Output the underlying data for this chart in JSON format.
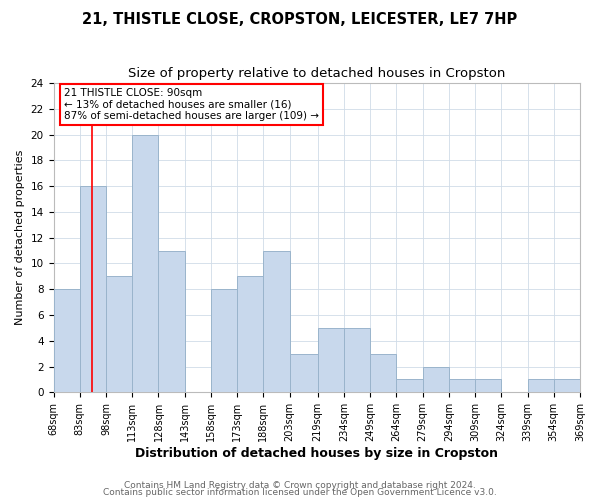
{
  "title": "21, THISTLE CLOSE, CROPSTON, LEICESTER, LE7 7HP",
  "subtitle": "Size of property relative to detached houses in Cropston",
  "xlabel": "Distribution of detached houses by size in Cropston",
  "ylabel": "Number of detached properties",
  "bar_edges": [
    68,
    83,
    98,
    113,
    128,
    143,
    158,
    173,
    188,
    203,
    219,
    234,
    249,
    264,
    279,
    294,
    309,
    324,
    339,
    354,
    369
  ],
  "bar_heights": [
    8,
    16,
    9,
    20,
    11,
    0,
    8,
    9,
    11,
    3,
    5,
    5,
    3,
    1,
    2,
    1,
    1,
    0,
    1,
    1
  ],
  "bar_color": "#c8d8ec",
  "bar_edge_color": "#9ab4cc",
  "ylim": [
    0,
    24
  ],
  "yticks": [
    0,
    2,
    4,
    6,
    8,
    10,
    12,
    14,
    16,
    18,
    20,
    22,
    24
  ],
  "xtick_labels": [
    "68sqm",
    "83sqm",
    "98sqm",
    "113sqm",
    "128sqm",
    "143sqm",
    "158sqm",
    "173sqm",
    "188sqm",
    "203sqm",
    "219sqm",
    "234sqm",
    "249sqm",
    "264sqm",
    "279sqm",
    "294sqm",
    "309sqm",
    "324sqm",
    "339sqm",
    "354sqm",
    "369sqm"
  ],
  "red_line_x": 90,
  "annotation_title": "21 THISTLE CLOSE: 90sqm",
  "annotation_line1": "← 13% of detached houses are smaller (16)",
  "annotation_line2": "87% of semi-detached houses are larger (109) →",
  "footer1": "Contains HM Land Registry data © Crown copyright and database right 2024.",
  "footer2": "Contains public sector information licensed under the Open Government Licence v3.0.",
  "background_color": "#ffffff",
  "grid_color": "#d0dce8",
  "title_fontsize": 10.5,
  "subtitle_fontsize": 9.5,
  "xlabel_fontsize": 9,
  "ylabel_fontsize": 8,
  "footer_fontsize": 6.5
}
